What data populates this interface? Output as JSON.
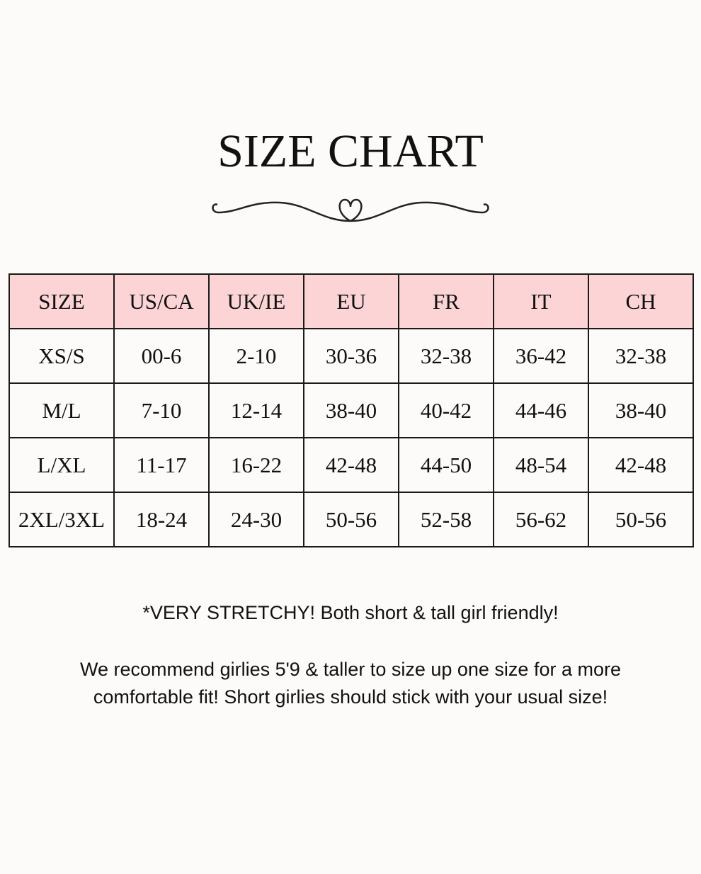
{
  "title": "SIZE CHART",
  "divider_icon": "heart-flourish-icon",
  "colors": {
    "header_bg": "#fcd4d6",
    "background": "#fcfbf9",
    "border": "#1a1a1a"
  },
  "table": {
    "headers": [
      "SIZE",
      "US/CA",
      "UK/IE",
      "EU",
      "FR",
      "IT",
      "CH"
    ],
    "rows": [
      [
        "XS/S",
        "00-6",
        "2-10",
        "30-36",
        "32-38",
        "36-42",
        "32-38"
      ],
      [
        "M/L",
        "7-10",
        "12-14",
        "38-40",
        "40-42",
        "44-46",
        "38-40"
      ],
      [
        "L/XL",
        "11-17",
        "16-22",
        "42-48",
        "44-50",
        "48-54",
        "42-48"
      ],
      [
        "2XL/3XL",
        "18-24",
        "24-30",
        "50-56",
        "52-58",
        "56-62",
        "50-56"
      ]
    ]
  },
  "notes": {
    "stretchy": "*VERY STRETCHY! Both short & tall girl friendly!",
    "recommend_line1": "We recommend girlies 5'9 & taller to size up one size for a more",
    "recommend_line2": "comfortable fit! Short girlies should stick with your usual size!"
  }
}
